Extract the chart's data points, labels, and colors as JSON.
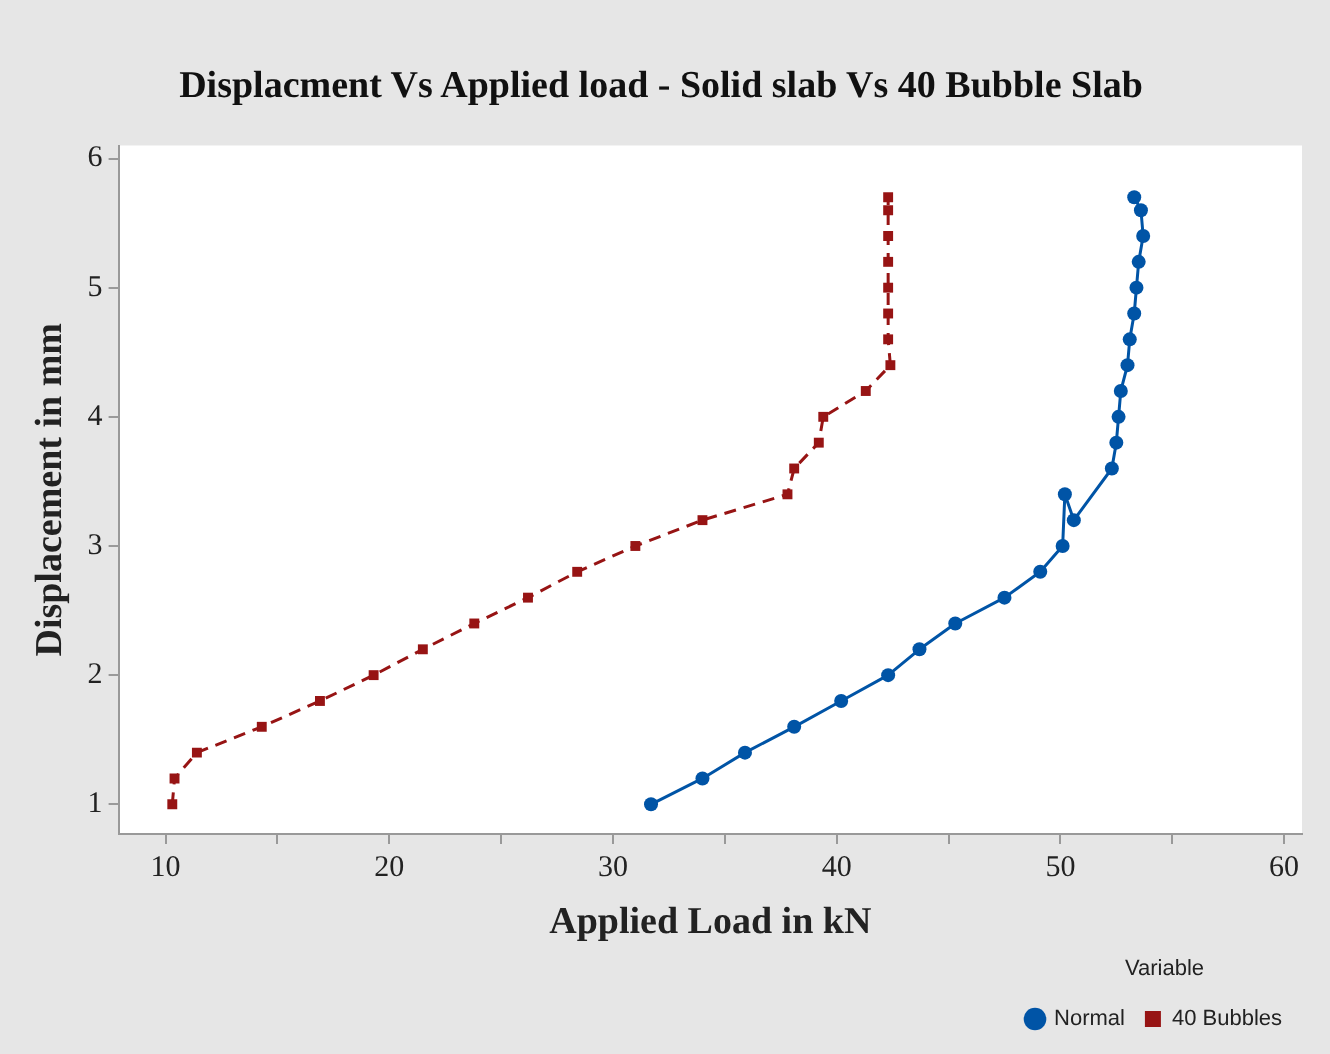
{
  "chart_data": {
    "type": "line",
    "title": "Displacment Vs Applied load - Solid slab Vs 40 Bubble Slab",
    "xlabel": "Applied Load in kN",
    "ylabel": "Displacement in mm",
    "legend_title": "Variable",
    "xlim": [
      7.9,
      60.8
    ],
    "xticks": [
      10,
      {
        "value": 15,
        "label": null
      },
      20,
      {
        "value": 25,
        "label": null
      },
      30,
      {
        "value": 35,
        "label": null
      },
      40,
      {
        "value": 45,
        "label": null
      },
      50,
      {
        "value": 55,
        "label": null
      },
      60
    ],
    "ylim": [
      0.77,
      6.1
    ],
    "yticks": [
      1,
      2,
      3,
      4,
      5,
      6
    ],
    "grid": false,
    "legend": "bottom right",
    "series": [
      {
        "name": "Normal",
        "color": "#0054a6",
        "marker": "circle",
        "line_style": "solid",
        "x": [
          31.7,
          34.0,
          35.9,
          38.1,
          40.2,
          42.3,
          43.7,
          45.3,
          47.5,
          49.1,
          50.1,
          50.2,
          50.6,
          52.3,
          52.5,
          52.6,
          52.7,
          53.0,
          53.1,
          53.3,
          53.4,
          53.5,
          53.7,
          53.6,
          53.3
        ],
        "values": [
          1.0,
          1.2,
          1.4,
          1.6,
          1.8,
          2.0,
          2.2,
          2.4,
          2.6,
          2.8,
          3.0,
          3.4,
          3.2,
          3.6,
          3.8,
          4.0,
          4.2,
          4.4,
          4.6,
          4.8,
          5.0,
          5.2,
          5.4,
          5.6,
          5.7
        ]
      },
      {
        "name": "40 Bubbles",
        "color": "#971414",
        "marker": "square",
        "line_style": "dashed",
        "x": [
          10.3,
          10.4,
          11.4,
          14.3,
          16.9,
          19.3,
          21.5,
          23.8,
          26.2,
          28.4,
          31.0,
          34.0,
          37.8,
          38.1,
          39.2,
          39.4,
          41.3,
          42.4,
          42.3,
          42.3,
          42.3,
          42.3,
          42.3,
          42.3,
          42.3
        ],
        "values": [
          1.0,
          1.2,
          1.4,
          1.6,
          1.8,
          2.0,
          2.2,
          2.4,
          2.6,
          2.8,
          3.0,
          3.2,
          3.4,
          3.6,
          3.8,
          4.0,
          4.2,
          4.4,
          4.6,
          4.8,
          5.0,
          5.2,
          5.4,
          5.6,
          5.7
        ]
      }
    ]
  }
}
